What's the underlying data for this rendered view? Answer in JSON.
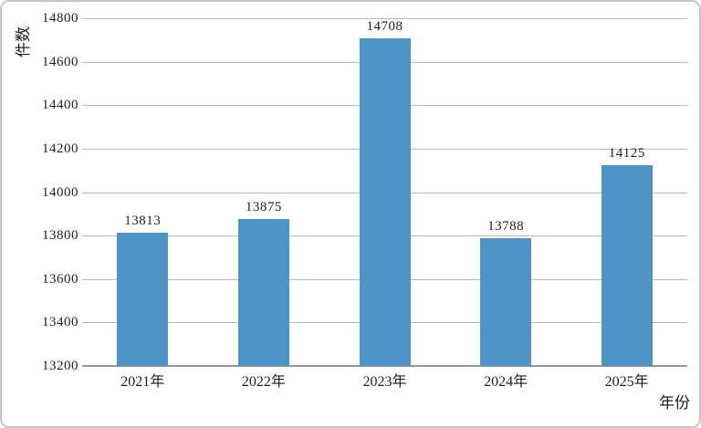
{
  "chart_data": {
    "type": "bar",
    "categories": [
      "2021年",
      "2022年",
      "2023年",
      "2024年",
      "2025年"
    ],
    "values": [
      13813,
      13875,
      14708,
      13788,
      14125
    ],
    "title": "",
    "xlabel": "年份",
    "ylabel": "件数",
    "ylim": [
      13200,
      14800
    ],
    "ytick_step": 200,
    "yticks": [
      13200,
      13400,
      13600,
      13800,
      14000,
      14200,
      14400,
      14600,
      14800
    ],
    "grid": true,
    "legend": "none",
    "colors": {
      "bar_fill": "#4e94c6",
      "gridline": "#b8b8b8",
      "axis_line": "#969696",
      "text": "#1f1f1f",
      "frame_border": "#c6c6c6",
      "background": "#ffffff"
    }
  }
}
